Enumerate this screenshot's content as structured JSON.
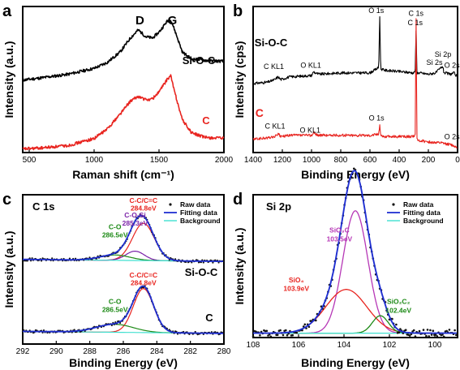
{
  "chart_data": [
    {
      "panel": "a",
      "type": "line",
      "xlabel": "Raman shift (cm⁻¹)",
      "ylabel": "Intensity (a.u.)",
      "xlim": [
        450,
        2000
      ],
      "xticks": [
        500,
        1000,
        1500,
        2000
      ],
      "peak_labels": [
        {
          "text": "D",
          "x": 1340
        },
        {
          "text": "G",
          "x": 1590
        }
      ],
      "series": [
        {
          "name": "Si-O-C",
          "color": "#000000",
          "x": [
            450,
            600,
            800,
            1000,
            1100,
            1200,
            1280,
            1340,
            1400,
            1450,
            1500,
            1560,
            1590,
            1620,
            1680,
            1750,
            1850,
            2000
          ],
          "y": [
            0.62,
            0.64,
            0.67,
            0.72,
            0.77,
            0.86,
            0.98,
            1.05,
            0.99,
            0.98,
            1.03,
            1.12,
            1.14,
            1.05,
            0.86,
            0.8,
            0.79,
            0.78
          ]
        },
        {
          "name": "C",
          "color": "#e8241f",
          "x": [
            450,
            600,
            800,
            1000,
            1100,
            1200,
            1280,
            1340,
            1400,
            1450,
            1500,
            1560,
            1590,
            1620,
            1680,
            1750,
            1850,
            2000
          ],
          "y": [
            0.03,
            0.04,
            0.06,
            0.12,
            0.2,
            0.33,
            0.44,
            0.48,
            0.45,
            0.46,
            0.52,
            0.62,
            0.66,
            0.52,
            0.28,
            0.17,
            0.13,
            0.12
          ]
        }
      ]
    },
    {
      "panel": "b",
      "type": "line",
      "xlabel": "Binding Energy (eV)",
      "ylabel": "Intensity (cps)",
      "xlim": [
        1400,
        0
      ],
      "xticks": [
        1400,
        1200,
        1000,
        800,
        600,
        400,
        200,
        0
      ],
      "series": [
        {
          "name": "Si-O-C",
          "color": "#000000",
          "x": [
            1400,
            1300,
            1250,
            1230,
            1210,
            1150,
            1000,
            985,
            975,
            950,
            800,
            600,
            540,
            533,
            526,
            500,
            400,
            300,
            290,
            284,
            278,
            260,
            200,
            150,
            102,
            95,
            90,
            50,
            25,
            10,
            0
          ],
          "y": [
            0.52,
            0.53,
            0.55,
            0.57,
            0.55,
            0.57,
            0.58,
            0.61,
            0.6,
            0.59,
            0.6,
            0.6,
            0.64,
            1.02,
            0.63,
            0.62,
            0.61,
            0.6,
            0.62,
            0.92,
            0.6,
            0.6,
            0.59,
            0.6,
            0.65,
            0.61,
            0.6,
            0.59,
            0.6,
            0.58,
            0.57
          ]
        },
        {
          "name": "C",
          "color": "#e8241f",
          "x": [
            1400,
            1300,
            1250,
            1230,
            1210,
            1150,
            1000,
            985,
            975,
            950,
            800,
            600,
            540,
            533,
            526,
            500,
            400,
            300,
            290,
            284,
            278,
            260,
            200,
            100,
            50,
            25,
            0
          ],
          "y": [
            0.1,
            0.11,
            0.12,
            0.14,
            0.12,
            0.13,
            0.13,
            0.15,
            0.14,
            0.13,
            0.13,
            0.13,
            0.14,
            0.21,
            0.13,
            0.12,
            0.12,
            0.12,
            0.14,
            1.0,
            0.1,
            0.09,
            0.08,
            0.07,
            0.06,
            0.05,
            0.04
          ]
        }
      ],
      "annotations": [
        {
          "text": "Si-O-C",
          "bold": true,
          "size": 13,
          "color": "#000000",
          "x": 1390,
          "y": 0.8
        },
        {
          "text": "C KL1",
          "color": "#000000",
          "x": 1258,
          "y": 0.63
        },
        {
          "text": "O KL1",
          "color": "#000000",
          "x": 1005,
          "y": 0.64
        },
        {
          "text": "O 1s",
          "color": "#000000",
          "x": 557,
          "y": 1.05
        },
        {
          "text": "C 1s",
          "color": "#000000",
          "x": 290,
          "y": 0.96
        },
        {
          "text": "Si 2s",
          "color": "#000000",
          "x": 158,
          "y": 0.66
        },
        {
          "text": "Si 2p",
          "color": "#000000",
          "x": 100,
          "y": 0.72
        },
        {
          "text": "O 2s",
          "color": "#000000",
          "x": 38,
          "y": 0.64
        },
        {
          "text": "C",
          "bold": true,
          "size": 14,
          "color": "#e8241f",
          "x": 1385,
          "y": 0.27
        },
        {
          "text": "C KL1",
          "color": "#000000",
          "x": 1250,
          "y": 0.18
        },
        {
          "text": "O KL1",
          "color": "#000000",
          "x": 1010,
          "y": 0.15
        },
        {
          "text": "O 1s",
          "color": "#000000",
          "x": 555,
          "y": 0.24
        },
        {
          "text": "C 1s",
          "color": "#000000",
          "x": 285,
          "y": 1.03
        },
        {
          "text": "O 2s",
          "color": "#000000",
          "x": 38,
          "y": 0.1
        }
      ]
    },
    {
      "panel": "c",
      "type": "line",
      "xlabel": "Binding Energy (eV)",
      "ylabel": "Intensity (a.u.)",
      "xlim": [
        292,
        280
      ],
      "xticks": [
        292,
        290,
        288,
        286,
        284,
        282,
        280
      ],
      "title": "C 1s",
      "legend": [
        "Raw data",
        "Fitting data",
        "Background"
      ],
      "legend_position": "top-right",
      "sample_labels": [
        "Si-O-C",
        "C"
      ],
      "annotations": [
        {
          "text": "C-C/C=C",
          "color": "#e8241f",
          "x": 284.8,
          "y": 1.06
        },
        {
          "text": "284.8eV",
          "color": "#e8241f",
          "x": 284.8,
          "y": 1.0
        },
        {
          "text": "C-O-Si",
          "color": "#7b22a8",
          "x": 285.3,
          "y": 0.95
        },
        {
          "text": "285.3eV",
          "color": "#7b22a8",
          "x": 285.3,
          "y": 0.89
        },
        {
          "text": "C-O",
          "color": "#1d8a16",
          "x": 286.5,
          "y": 0.86
        },
        {
          "text": "286.5eV",
          "color": "#1d8a16",
          "x": 286.5,
          "y": 0.8
        },
        {
          "text": "C-C/C=C",
          "color": "#e8241f",
          "x": 284.8,
          "y": 0.5
        },
        {
          "text": "284.8eV",
          "color": "#e8241f",
          "x": 284.8,
          "y": 0.44
        },
        {
          "text": "C-O",
          "color": "#1d8a16",
          "x": 286.5,
          "y": 0.3
        },
        {
          "text": "286.5eV",
          "color": "#1d8a16",
          "x": 286.5,
          "y": 0.24
        }
      ],
      "components": [
        {
          "sample": "Si-O-C",
          "name": "C-C/C=C",
          "center": 284.8,
          "amplitude": 0.28,
          "width": 0.65,
          "color": "#e8241f"
        },
        {
          "sample": "Si-O-C",
          "name": "C-O-Si",
          "center": 285.3,
          "amplitude": 0.07,
          "width": 0.55,
          "color": "#7b22a8"
        },
        {
          "sample": "Si-O-C",
          "name": "C-O",
          "center": 286.5,
          "amplitude": 0.04,
          "width": 0.9,
          "color": "#1d8a16"
        },
        {
          "sample": "C",
          "name": "C-C/C=C",
          "center": 284.8,
          "amplitude": 0.33,
          "width": 0.6,
          "color": "#e8241f"
        },
        {
          "sample": "C",
          "name": "C-O",
          "center": 286.5,
          "amplitude": 0.06,
          "width": 1.1,
          "color": "#1d8a16"
        }
      ],
      "baselines": {
        "Si-O-C": 0.62,
        "C": 0.08
      }
    },
    {
      "panel": "d",
      "type": "line",
      "xlabel": "Binding Energy (eV)",
      "ylabel": "Intensity (a.u.)",
      "xlim": [
        108,
        99
      ],
      "xticks": [
        108,
        106,
        104,
        102,
        100
      ],
      "title": "Si 2p",
      "legend": [
        "Raw data",
        "Fitting data",
        "Background"
      ],
      "legend_position": "top-right",
      "annotations": [
        {
          "text": "SiO₃C",
          "color": "#b637b6",
          "x": 104.2,
          "y": 0.72
        },
        {
          "text": "103.5eV",
          "color": "#b637b6",
          "x": 104.2,
          "y": 0.66
        },
        {
          "text": "SiO₄",
          "color": "#e8241f",
          "x": 106.1,
          "y": 0.38
        },
        {
          "text": "103.9eV",
          "color": "#e8241f",
          "x": 106.1,
          "y": 0.32
        },
        {
          "text": "SiO₂C₂",
          "color": "#1d8a16",
          "x": 101.6,
          "y": 0.23
        },
        {
          "text": "102.4eV",
          "color": "#1d8a16",
          "x": 101.6,
          "y": 0.17
        }
      ],
      "components": [
        {
          "name": "SiO₃C",
          "center": 103.5,
          "amplitude": 0.84,
          "width": 0.55,
          "color": "#b637b6"
        },
        {
          "name": "SiO₄",
          "center": 103.9,
          "amplitude": 0.3,
          "width": 0.9,
          "color": "#e8241f"
        },
        {
          "name": "SiO₂C₂",
          "center": 102.4,
          "amplitude": 0.12,
          "width": 0.35,
          "color": "#1d8a16"
        }
      ],
      "baseline": 0.03
    }
  ]
}
